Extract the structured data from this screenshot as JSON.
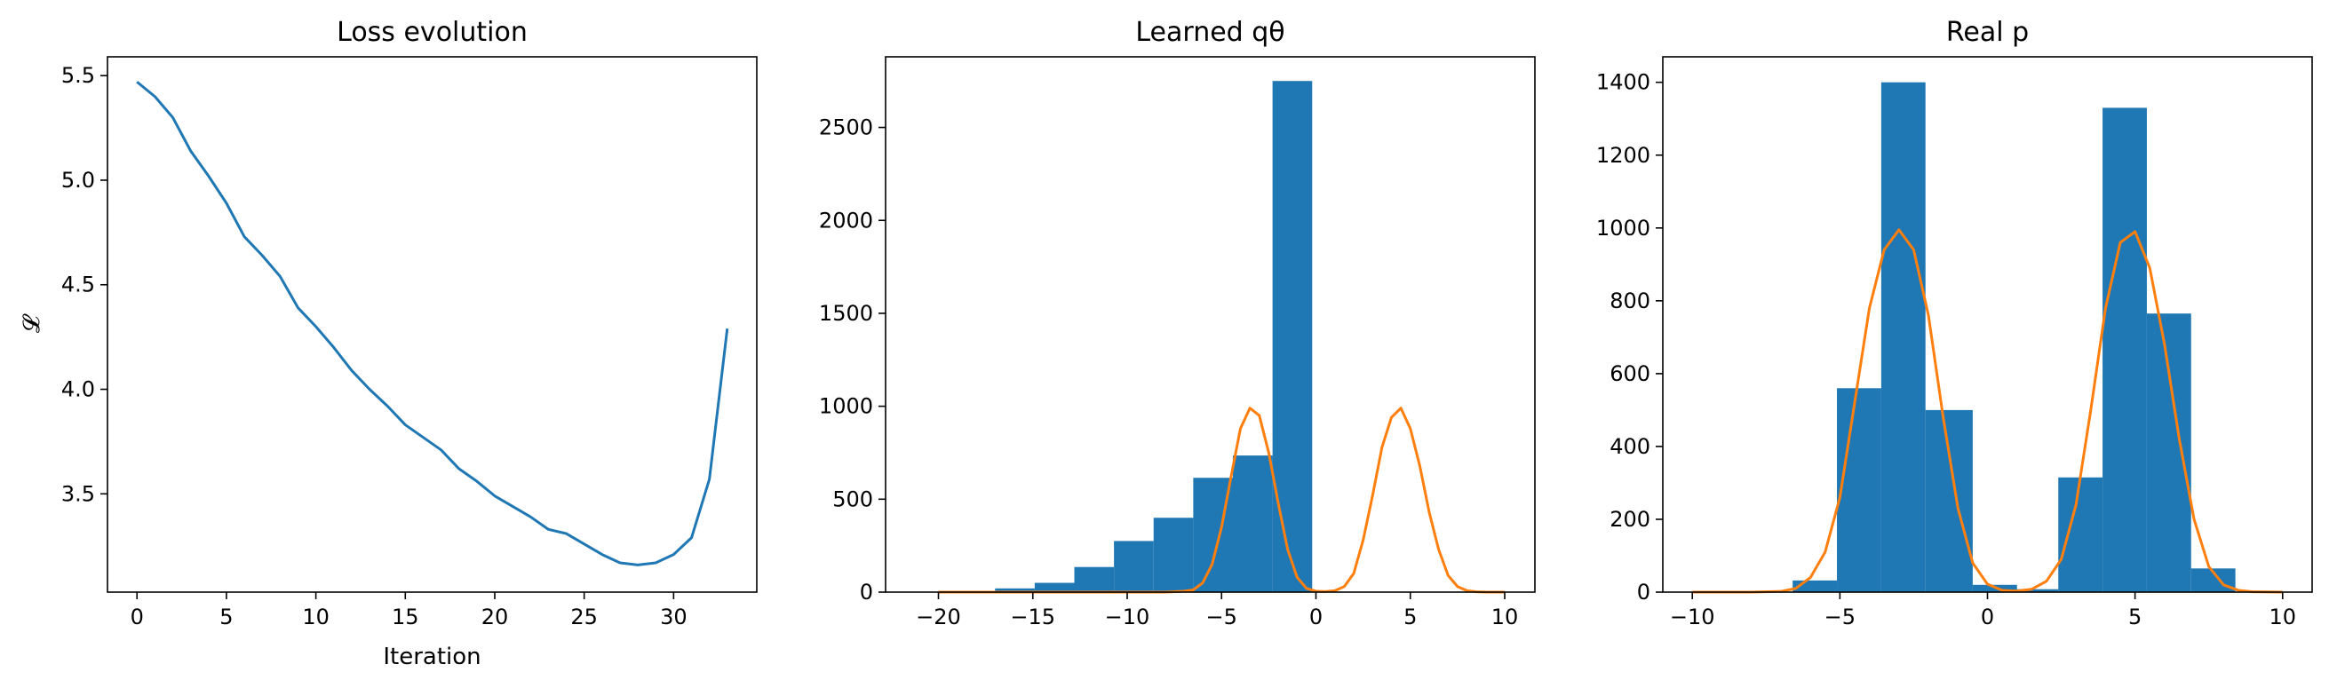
{
  "chart_data": [
    {
      "type": "line",
      "title": "Loss evolution",
      "xlabel": "Iteration",
      "ylabel": "𝓛",
      "xlim": [
        -1.65,
        34.65
      ],
      "ylim": [
        3.03,
        5.59
      ],
      "xticks": [
        0,
        5,
        10,
        15,
        20,
        25,
        30
      ],
      "yticks": [
        3.5,
        4.0,
        4.5,
        5.0,
        5.5
      ],
      "ytick_labels": [
        "3.5",
        "4.0",
        "4.5",
        "5.0",
        "5.5"
      ],
      "grid": false,
      "series": [
        {
          "color": "#1f77b4",
          "x": [
            0,
            1,
            2,
            3,
            4,
            5,
            6,
            7,
            8,
            9,
            10,
            11,
            12,
            13,
            14,
            15,
            16,
            17,
            18,
            19,
            20,
            21,
            22,
            23,
            24,
            25,
            26,
            27,
            28,
            29,
            30,
            31,
            32,
            33
          ],
          "y": [
            5.47,
            5.4,
            5.3,
            5.14,
            5.02,
            4.89,
            4.73,
            4.64,
            4.54,
            4.39,
            4.3,
            4.2,
            4.09,
            4.0,
            3.92,
            3.83,
            3.77,
            3.71,
            3.62,
            3.56,
            3.49,
            3.44,
            3.39,
            3.33,
            3.31,
            3.26,
            3.21,
            3.17,
            3.16,
            3.17,
            3.21,
            3.29,
            3.57,
            4.29
          ]
        }
      ]
    },
    {
      "type": "bar",
      "title": "Learned qθ",
      "xlabel": "",
      "ylabel": "",
      "xlim": [
        -22.8,
        11.6
      ],
      "ylim": [
        0,
        2880
      ],
      "xticks": [
        -20,
        -15,
        -10,
        -5,
        0,
        5,
        10
      ],
      "xtick_labels": [
        "−20",
        "−15",
        "−10",
        "−5",
        "0",
        "5",
        "10"
      ],
      "yticks": [
        0,
        500,
        1000,
        1500,
        2000,
        2500
      ],
      "grid": false,
      "bar_color": "#1f77b4",
      "bins": [
        {
          "x0": -21.1,
          "x1": -19.0,
          "value": 1
        },
        {
          "x0": -19.0,
          "x1": -17.0,
          "value": 4
        },
        {
          "x0": -17.0,
          "x1": -14.9,
          "value": 20
        },
        {
          "x0": -14.9,
          "x1": -12.8,
          "value": 50
        },
        {
          "x0": -12.8,
          "x1": -10.7,
          "value": 135
        },
        {
          "x0": -10.7,
          "x1": -8.6,
          "value": 275
        },
        {
          "x0": -8.6,
          "x1": -6.5,
          "value": 400
        },
        {
          "x0": -6.5,
          "x1": -4.4,
          "value": 615
        },
        {
          "x0": -4.4,
          "x1": -2.3,
          "value": 735
        },
        {
          "x0": -2.3,
          "x1": -0.2,
          "value": 2750
        }
      ],
      "line_color": "#ff7f0e",
      "line_x": [
        -20,
        -19,
        -18,
        -17,
        -16,
        -15,
        -14,
        -13,
        -12,
        -11,
        -10,
        -9,
        -8,
        -7,
        -6.5,
        -6,
        -5.5,
        -5,
        -4.5,
        -4,
        -3.5,
        -3,
        -2.5,
        -2,
        -1.5,
        -1,
        -0.5,
        0,
        0.5,
        1,
        1.5,
        2,
        2.5,
        3,
        3.5,
        4,
        4.5,
        5,
        5.5,
        6,
        6.5,
        7,
        7.5,
        8,
        8.5,
        9,
        10
      ],
      "line_y": [
        0,
        0,
        0,
        0,
        0,
        0,
        0,
        0,
        0,
        0,
        0,
        0,
        0,
        5,
        12,
        50,
        150,
        350,
        620,
        880,
        990,
        950,
        750,
        480,
        230,
        80,
        20,
        5,
        3,
        8,
        30,
        100,
        280,
        520,
        780,
        940,
        990,
        880,
        680,
        430,
        230,
        90,
        30,
        8,
        2,
        0,
        0
      ]
    },
    {
      "type": "bar",
      "title": "Real p",
      "xlabel": "",
      "ylabel": "",
      "xlim": [
        -11.0,
        11.0
      ],
      "ylim": [
        0,
        1470
      ],
      "xticks": [
        -10,
        -5,
        0,
        5,
        10
      ],
      "xtick_labels": [
        "−10",
        "−5",
        "0",
        "5",
        "10"
      ],
      "yticks": [
        0,
        200,
        400,
        600,
        800,
        1000,
        1200,
        1400
      ],
      "grid": false,
      "bar_color": "#1f77b4",
      "bins": [
        {
          "x0": -6.6,
          "x1": -5.1,
          "value": 32
        },
        {
          "x0": -5.1,
          "x1": -3.6,
          "value": 560
        },
        {
          "x0": -3.6,
          "x1": -2.1,
          "value": 1400
        },
        {
          "x0": -2.1,
          "x1": -0.5,
          "value": 500
        },
        {
          "x0": -0.5,
          "x1": 1.0,
          "value": 20
        },
        {
          "x0": 1.0,
          "x1": 2.4,
          "value": 8
        },
        {
          "x0": 2.4,
          "x1": 3.9,
          "value": 315
        },
        {
          "x0": 3.9,
          "x1": 5.4,
          "value": 1330
        },
        {
          "x0": 5.4,
          "x1": 6.9,
          "value": 765
        },
        {
          "x0": 6.9,
          "x1": 8.4,
          "value": 65
        }
      ],
      "line_color": "#ff7f0e",
      "line_x": [
        -10,
        -9,
        -8,
        -7,
        -6.5,
        -6,
        -5.5,
        -5,
        -4.5,
        -4,
        -3.5,
        -3,
        -2.5,
        -2,
        -1.5,
        -1,
        -0.5,
        0,
        0.5,
        1,
        1.5,
        2,
        2.5,
        3,
        3.5,
        4,
        4.5,
        5,
        5.5,
        6,
        6.5,
        7,
        7.5,
        8,
        8.5,
        9,
        10
      ],
      "line_y": [
        0,
        0,
        0,
        2,
        10,
        40,
        110,
        260,
        520,
        780,
        940,
        995,
        940,
        760,
        480,
        230,
        80,
        22,
        5,
        3,
        8,
        30,
        90,
        240,
        500,
        780,
        960,
        990,
        890,
        680,
        420,
        200,
        70,
        20,
        5,
        1,
        0
      ]
    }
  ]
}
